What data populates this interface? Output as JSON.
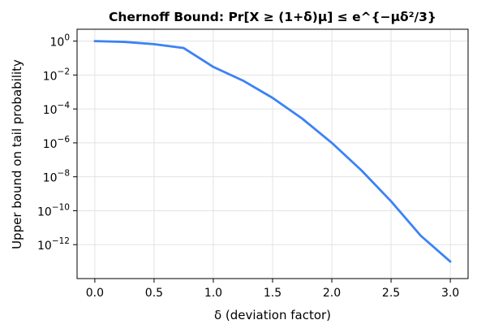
{
  "chart_data": {
    "type": "line",
    "title": "Chernoff Bound: Pr[X ≥ (1+δ)μ] ≤ e^{−μδ²/3}",
    "xlabel": "δ (deviation factor)",
    "ylabel": "Upper bound on tail probability",
    "xlim": [
      -0.15,
      3.15
    ],
    "ylim": [
      1e-14,
      5
    ],
    "yscale": "log",
    "grid": true,
    "x_ticks": [
      {
        "value": 0.0,
        "label": "0.0"
      },
      {
        "value": 0.5,
        "label": "0.5"
      },
      {
        "value": 1.0,
        "label": "1.0"
      },
      {
        "value": 1.5,
        "label": "1.5"
      },
      {
        "value": 2.0,
        "label": "2.0"
      },
      {
        "value": 2.5,
        "label": "2.5"
      },
      {
        "value": 3.0,
        "label": "3.0"
      }
    ],
    "y_ticks": [
      {
        "value": 1,
        "base": "10",
        "exp": "0"
      },
      {
        "value": 0.01,
        "base": "10",
        "exp": "−2"
      },
      {
        "value": 0.0001,
        "base": "10",
        "exp": "−4"
      },
      {
        "value": 1e-06,
        "base": "10",
        "exp": "−6"
      },
      {
        "value": 1e-08,
        "base": "10",
        "exp": "−8"
      },
      {
        "value": 1e-10,
        "base": "10",
        "exp": "−10"
      },
      {
        "value": 1e-12,
        "base": "10",
        "exp": "−12"
      }
    ],
    "series": [
      {
        "color": "#3b82f6",
        "x": [
          0.0,
          0.25,
          0.5,
          0.75,
          1.0,
          1.25,
          1.5,
          1.75,
          2.0,
          2.25,
          2.5,
          2.75,
          3.0
        ],
        "y": [
          1.0,
          0.9,
          0.66,
          0.39,
          0.03,
          0.0047,
          0.00045,
          2.7e-05,
          1e-06,
          2.4e-08,
          3.6e-10,
          3.4e-12,
          1e-13
        ]
      }
    ]
  }
}
